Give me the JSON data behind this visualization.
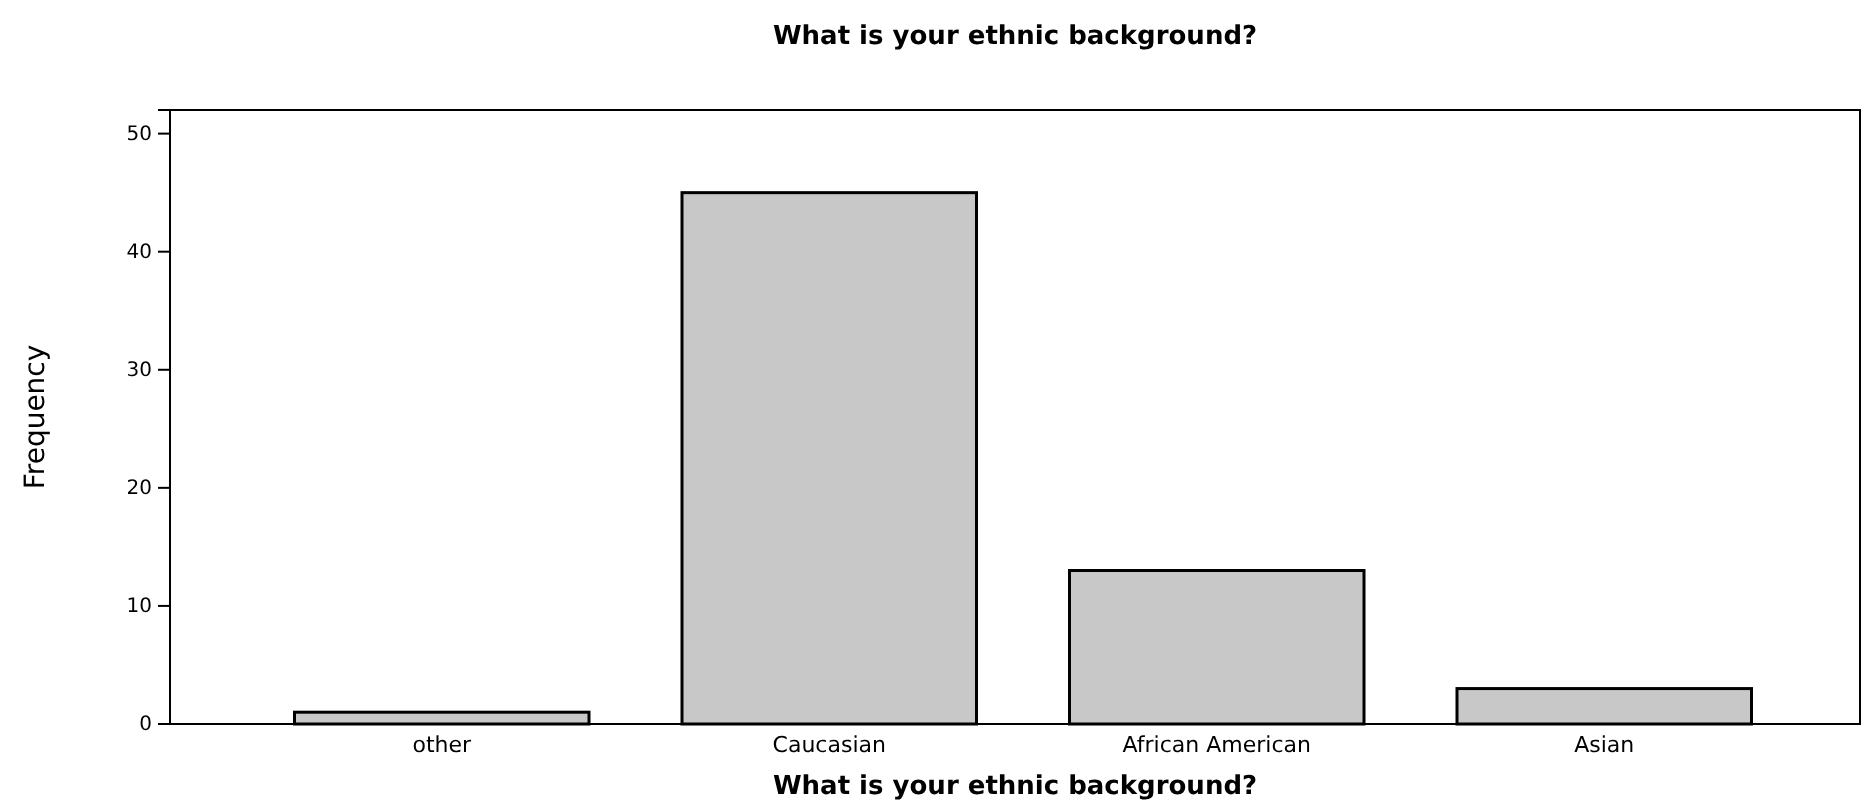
{
  "chart_data": {
    "type": "bar",
    "title": "What is your ethnic background?",
    "xlabel": "What is your ethnic background?",
    "ylabel": "Frequency",
    "categories": [
      "other",
      "Caucasian",
      "African American",
      "Asian"
    ],
    "values": [
      1,
      45,
      13,
      3
    ],
    "color": "#c8c8c8",
    "ylim": [
      0,
      52
    ],
    "yticks": [
      0,
      10,
      20,
      30,
      40,
      50
    ],
    "grid": false
  }
}
